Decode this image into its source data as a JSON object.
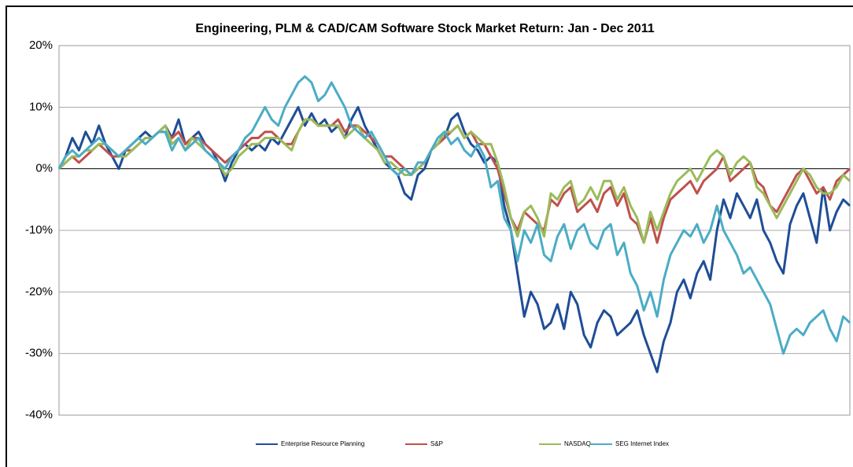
{
  "chart_data": {
    "type": "line",
    "title": "Engineering, PLM & CAD/CAM Software Stock Market Return: Jan - Dec 2011",
    "ylim": [
      -40,
      20
    ],
    "yticks": [
      {
        "value": -40,
        "label": "-40%"
      },
      {
        "value": -30,
        "label": "-30%"
      },
      {
        "value": -20,
        "label": "-20%"
      },
      {
        "value": -10,
        "label": "-10%"
      },
      {
        "value": 0,
        "label": "0%"
      },
      {
        "value": 10,
        "label": "10%"
      },
      {
        "value": 20,
        "label": "20%"
      }
    ],
    "grid": true,
    "legend": "bottom",
    "series": [
      {
        "name": "Enterprise Resource Planning",
        "color": "#1f4e96",
        "values": [
          0,
          2,
          5,
          3,
          6,
          4,
          7,
          4,
          2,
          0,
          3,
          4,
          5,
          6,
          5,
          6,
          7,
          5,
          8,
          4,
          5,
          6,
          4,
          3,
          1,
          -2,
          1,
          3,
          4,
          3,
          4,
          3,
          5,
          4,
          6,
          8,
          10,
          7,
          9,
          7,
          8,
          6,
          7,
          5,
          8,
          10,
          7,
          5,
          3,
          1,
          0,
          -1,
          -4,
          -5,
          -1,
          0,
          3,
          4,
          5,
          8,
          9,
          6,
          4,
          3,
          1,
          2,
          1,
          -6,
          -10,
          -17,
          -24,
          -20,
          -22,
          -26,
          -25,
          -22,
          -26,
          -20,
          -22,
          -27,
          -29,
          -25,
          -23,
          -24,
          -27,
          -26,
          -25,
          -23,
          -27,
          -30,
          -33,
          -28,
          -25,
          -20,
          -18,
          -21,
          -17,
          -15,
          -18,
          -10,
          -5,
          -8,
          -4,
          -6,
          -8,
          -5,
          -10,
          -12,
          -15,
          -17,
          -9,
          -6,
          -4,
          -8,
          -12,
          -3,
          -10,
          -7,
          -5,
          -6
        ]
      },
      {
        "name": "S&P",
        "color": "#c0504d",
        "values": [
          0,
          1,
          2,
          1,
          2,
          3,
          4,
          3,
          2,
          2,
          3,
          3,
          4,
          5,
          5,
          6,
          6,
          5,
          6,
          4,
          5,
          5,
          4,
          3,
          2,
          1,
          2,
          3,
          4,
          5,
          5,
          6,
          6,
          5,
          4,
          4,
          6,
          8,
          8,
          7,
          7,
          7,
          8,
          6,
          7,
          7,
          6,
          5,
          4,
          2,
          2,
          1,
          0,
          -1,
          0,
          1,
          3,
          4,
          5,
          6,
          7,
          5,
          6,
          4,
          4,
          2,
          0,
          -4,
          -8,
          -10,
          -7,
          -8,
          -9,
          -10,
          -5,
          -6,
          -4,
          -3,
          -7,
          -6,
          -5,
          -7,
          -4,
          -3,
          -6,
          -4,
          -8,
          -9,
          -12,
          -8,
          -12,
          -8,
          -5,
          -4,
          -3,
          -2,
          -4,
          -2,
          -1,
          0,
          2,
          -2,
          -1,
          0,
          1,
          -2,
          -3,
          -6,
          -7,
          -5,
          -3,
          -1,
          0,
          -2,
          -4,
          -3,
          -5,
          -2,
          -1,
          0
        ]
      },
      {
        "name": "NASDAQ",
        "color": "#9bbb59",
        "values": [
          0,
          1,
          2,
          2,
          3,
          3,
          4,
          4,
          3,
          2,
          2,
          3,
          4,
          5,
          5,
          6,
          7,
          4,
          5,
          3,
          5,
          4,
          3,
          2,
          1,
          -1,
          0,
          2,
          3,
          4,
          4,
          5,
          5,
          5,
          4,
          3,
          6,
          8,
          8,
          7,
          7,
          7,
          7,
          5,
          6,
          7,
          5,
          4,
          3,
          1,
          1,
          0,
          -1,
          -1,
          0,
          1,
          3,
          4,
          6,
          6,
          7,
          5,
          6,
          5,
          4,
          4,
          1,
          -3,
          -8,
          -11,
          -7,
          -6,
          -8,
          -11,
          -4,
          -5,
          -3,
          -2,
          -6,
          -5,
          -3,
          -5,
          -2,
          -2,
          -5,
          -3,
          -6,
          -8,
          -12,
          -7,
          -10,
          -7,
          -4,
          -2,
          -1,
          0,
          -2,
          0,
          2,
          3,
          2,
          -1,
          1,
          2,
          1,
          -3,
          -4,
          -6,
          -8,
          -6,
          -4,
          -2,
          0,
          -1,
          -3,
          -4,
          -4,
          -3,
          -1,
          -2
        ]
      },
      {
        "name": "SEG Internet Index",
        "color": "#4bacc6",
        "values": [
          0,
          2,
          3,
          2,
          3,
          4,
          5,
          4,
          3,
          2,
          3,
          4,
          5,
          4,
          5,
          6,
          6,
          3,
          5,
          3,
          4,
          5,
          3,
          2,
          1,
          0,
          2,
          3,
          5,
          6,
          8,
          10,
          8,
          7,
          10,
          12,
          14,
          15,
          14,
          11,
          12,
          14,
          12,
          10,
          7,
          6,
          5,
          6,
          4,
          2,
          0,
          -1,
          0,
          -1,
          1,
          1,
          3,
          5,
          6,
          4,
          5,
          3,
          2,
          4,
          2,
          -3,
          -2,
          -8,
          -10,
          -15,
          -10,
          -12,
          -9,
          -14,
          -15,
          -11,
          -9,
          -13,
          -10,
          -9,
          -12,
          -13,
          -10,
          -9,
          -14,
          -12,
          -17,
          -19,
          -23,
          -20,
          -24,
          -18,
          -14,
          -12,
          -10,
          -11,
          -9,
          -12,
          -10,
          -6,
          -10,
          -12,
          -14,
          -17,
          -16,
          -18,
          -20,
          -22,
          -26,
          -30,
          -27,
          -26,
          -27,
          -25,
          -24,
          -23,
          -26,
          -28,
          -24,
          -25
        ]
      }
    ]
  }
}
